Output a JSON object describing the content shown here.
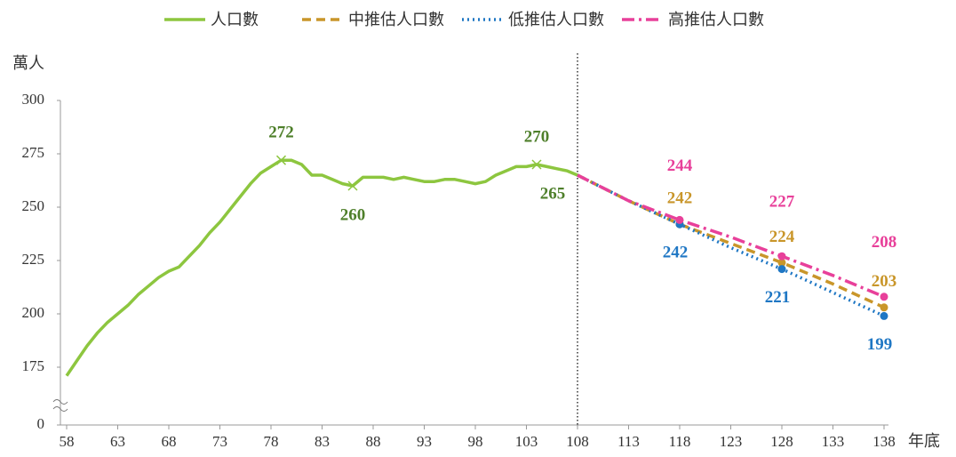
{
  "chart_data": {
    "type": "line",
    "y_label": "萬人",
    "x_label": "年底",
    "xlim": [
      58,
      138
    ],
    "xticks": [
      58,
      63,
      68,
      73,
      78,
      83,
      88,
      93,
      98,
      103,
      108,
      113,
      118,
      123,
      128,
      133,
      138
    ],
    "ylim": [
      0,
      300
    ],
    "yticks": [
      0,
      175,
      200,
      225,
      250,
      275,
      300
    ],
    "axis_break": true,
    "divider_x": 108,
    "legend": "top",
    "series": [
      {
        "name": "人口數",
        "color": "#8dc63f",
        "label_color": "#4e7f2a",
        "style": "solid",
        "x": [
          58,
          59,
          60,
          61,
          62,
          63,
          64,
          65,
          66,
          67,
          68,
          69,
          70,
          71,
          72,
          73,
          74,
          75,
          76,
          77,
          78,
          79,
          80,
          81,
          82,
          83,
          84,
          85,
          86,
          87,
          88,
          89,
          90,
          91,
          92,
          93,
          94,
          95,
          96,
          97,
          98,
          99,
          100,
          101,
          102,
          103,
          104,
          105,
          106,
          107,
          108
        ],
        "values": [
          171,
          178,
          185,
          191,
          196,
          200,
          204,
          209,
          213,
          217,
          220,
          222,
          227,
          232,
          238,
          243,
          249,
          255,
          261,
          266,
          269,
          272,
          272,
          270,
          265,
          265,
          263,
          261,
          260,
          264,
          264,
          264,
          263,
          264,
          263,
          262,
          262,
          263,
          263,
          262,
          261,
          262,
          265,
          267,
          269,
          269,
          270,
          269,
          268,
          267,
          265
        ],
        "labels": [
          null,
          null,
          null,
          null,
          null,
          null,
          null,
          null,
          null,
          null,
          null,
          null,
          null,
          null,
          null,
          null,
          null,
          null,
          null,
          null,
          null,
          272,
          null,
          null,
          null,
          null,
          null,
          null,
          260,
          null,
          null,
          null,
          null,
          null,
          null,
          null,
          null,
          null,
          null,
          null,
          null,
          null,
          null,
          null,
          null,
          null,
          270,
          null,
          null,
          null,
          265
        ]
      },
      {
        "name": "中推估人口數",
        "color": "#c9962a",
        "label_color": "#c9962a",
        "style": "dashed",
        "x": [
          108,
          113,
          118,
          123,
          128,
          133,
          138
        ],
        "values": [
          265,
          253,
          242,
          233,
          224,
          214,
          203
        ],
        "labels": [
          null,
          null,
          242,
          null,
          224,
          null,
          203
        ]
      },
      {
        "name": "低推估人口數",
        "color": "#1f77c4",
        "label_color": "#1f77c4",
        "style": "dotted",
        "x": [
          108,
          113,
          118,
          123,
          128,
          133,
          138
        ],
        "values": [
          265,
          253,
          242,
          231,
          221,
          210,
          199
        ],
        "labels": [
          null,
          null,
          242,
          null,
          221,
          null,
          199
        ]
      },
      {
        "name": "高推估人口數",
        "color": "#e8409a",
        "label_color": "#e8409a",
        "style": "dashdot",
        "x": [
          108,
          113,
          118,
          123,
          128,
          133,
          138
        ],
        "values": [
          265,
          253,
          244,
          236,
          227,
          218,
          208
        ],
        "labels": [
          null,
          null,
          244,
          null,
          227,
          null,
          208
        ]
      }
    ]
  }
}
